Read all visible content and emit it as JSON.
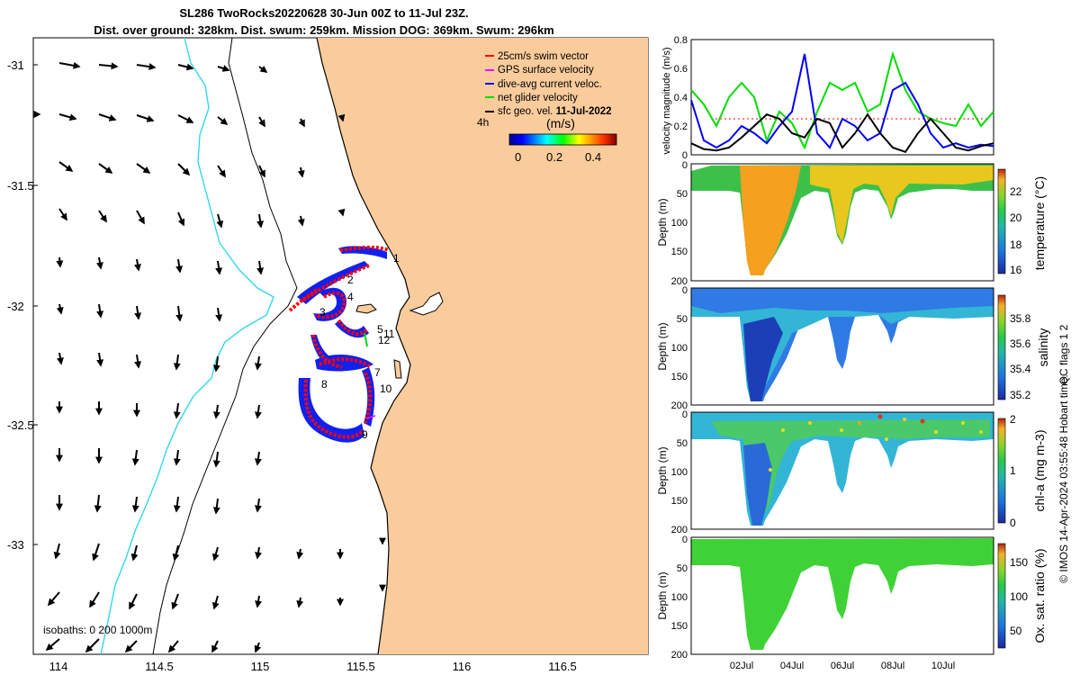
{
  "header": {
    "title_line1": "SL286 TwoRocks20220628 30-Jun 00Z to 11-Jul 23Z.",
    "title_line2": "Dist. over ground: 328km. Dist. swum: 259km. Mission DOG: 369km. Swum: 296km"
  },
  "colors": {
    "land": "#facc9c",
    "coast": "#000000",
    "isobath": "#33d8e8",
    "swim_vector": "#ff0000",
    "gps_velocity": "#ff00ff",
    "dive_avg": "#0000ff",
    "net_glider": "#00dd00",
    "sfc_geo": "#000000"
  },
  "chart_data": [
    {
      "type": "map",
      "x_ticks": [
        "114",
        "114.5",
        "115",
        "115.5",
        "116",
        "116.5"
      ],
      "y_ticks": [
        "-31",
        "-31.5",
        "-32",
        "-32.5",
        "-33"
      ],
      "xlim": [
        113.9,
        116.9
      ],
      "ylim": [
        -33.5,
        -30.9
      ],
      "legend": {
        "placement": "top-right",
        "items": [
          {
            "label": "25cm/s swim vector",
            "color": "#ff0000"
          },
          {
            "label": "GPS surface velocity",
            "color": "#ff00ff"
          },
          {
            "label": "dive-avg current veloc.",
            "color": "#0000ff"
          },
          {
            "label": "net glider velocity",
            "color": "#00dd00"
          },
          {
            "label": "sfc geo. vel. ",
            "bold_part": "11-Jul-2022",
            "color": "#000000"
          }
        ]
      },
      "colorbar": {
        "label": "(m/s)",
        "side_label": "4h",
        "ticks": [
          "0",
          "0.2",
          "0.4"
        ],
        "range": [
          0,
          0.5
        ]
      },
      "waypoint_labels": [
        "1",
        "2",
        "3",
        "4",
        "5",
        "11",
        "12",
        "7",
        "8",
        "10",
        "9"
      ],
      "isobath_label": "isobaths: 0   200  1000m"
    },
    {
      "type": "line",
      "ylabel": "velocity magnitude (m/s)",
      "ylim": [
        0,
        0.8
      ],
      "y_ticks": [
        "0",
        "0.2",
        "0.4",
        "0.6",
        "0.8"
      ],
      "x": [
        0,
        0.5,
        1,
        1.5,
        2,
        2.5,
        3,
        3.5,
        4,
        4.5,
        5,
        5.5,
        6,
        6.5,
        7,
        7.5,
        8,
        8.5,
        9,
        9.5,
        10,
        10.5,
        11,
        11.5,
        12
      ],
      "series": [
        {
          "color": "#00dd00",
          "values": [
            0.45,
            0.35,
            0.2,
            0.4,
            0.5,
            0.4,
            0.1,
            0.3,
            0.22,
            0.05,
            0.3,
            0.5,
            0.45,
            0.5,
            0.3,
            0.35,
            0.7,
            0.45,
            0.3,
            0.25,
            0.22,
            0.2,
            0.35,
            0.2,
            0.3
          ]
        },
        {
          "color": "#0000ff",
          "values": [
            0.38,
            0.1,
            0.05,
            0.1,
            0.2,
            0.15,
            0.08,
            0.2,
            0.3,
            0.7,
            0.15,
            0.05,
            0.25,
            0.2,
            0.1,
            0.15,
            0.45,
            0.5,
            0.35,
            0.15,
            0.05,
            0.08,
            0.05,
            0.07,
            0.06
          ]
        },
        {
          "color": "#000000",
          "values": [
            0.08,
            0.04,
            0.03,
            0.05,
            0.12,
            0.2,
            0.28,
            0.25,
            0.15,
            0.12,
            0.25,
            0.22,
            0.05,
            0.15,
            0.28,
            0.15,
            0.05,
            0.02,
            0.15,
            0.25,
            0.15,
            0.05,
            0.03,
            0.06,
            0.08
          ]
        }
      ]
    },
    {
      "type": "heatmap",
      "ylabel": "Depth (m)",
      "cbar_label": "temperature (°C)",
      "cbar_ticks": [
        "16",
        "18",
        "20",
        "22"
      ],
      "cbar_range": [
        15.8,
        23.6
      ],
      "y_ticks": [
        "0",
        "50",
        "100",
        "150",
        "200"
      ]
    },
    {
      "type": "heatmap",
      "ylabel": "Depth (m)",
      "cbar_label": "salinity",
      "cbar_ticks": [
        "35.2",
        "35.4",
        "35.6",
        "35.8"
      ],
      "cbar_range": [
        35.14,
        35.96
      ],
      "y_ticks": [
        "0",
        "50",
        "100",
        "150",
        "200"
      ]
    },
    {
      "type": "heatmap",
      "ylabel": "Depth (m)",
      "cbar_label": "chl-a (mg m-3)",
      "cbar_ticks": [
        "0",
        "1",
        "2"
      ],
      "cbar_range": [
        0,
        2
      ],
      "y_ticks": [
        "0",
        "50",
        "100",
        "150",
        "200"
      ]
    },
    {
      "type": "heatmap",
      "ylabel": "Depth (m)",
      "cbar_label": "Ox. sat. ratio (%)",
      "cbar_ticks": [
        "50",
        "100",
        "150"
      ],
      "cbar_range": [
        22,
        178
      ],
      "y_ticks": [
        "0",
        "50",
        "100",
        "150",
        "200"
      ],
      "x_ticks": [
        "02Jul",
        "04Jul",
        "06Jul",
        "08Jul",
        "10Jul"
      ]
    }
  ],
  "footer": {
    "qc_label": "QC flags 1  2",
    "credit": "© IMOS 14-Apr-2024 03:55:48 Hobart time."
  }
}
